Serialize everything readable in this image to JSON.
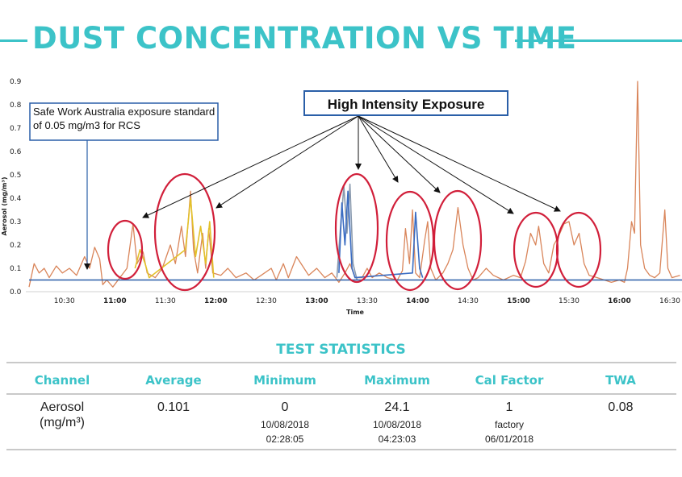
{
  "title": "DUST CONCENTRATION VS TIME",
  "colors": {
    "accent": "#3cc3c8",
    "ellipse": "#d11f3a",
    "series_orange": "#d9855a",
    "series_blue": "#3a6cc2",
    "series_yellow": "#e3c12a",
    "series_gray": "#8a9aae",
    "threshold": "#2a5fa8",
    "callout_border": "#2a5fa8"
  },
  "chart_data": {
    "type": "line",
    "title": "",
    "xlabel": "Time",
    "ylabel": "Aerosol (mg/m³)",
    "ylim": [
      0,
      0.9
    ],
    "yticks": [
      "0.9",
      "0.8",
      "0.7",
      "0.6",
      "0.5",
      "0.4",
      "0.3",
      "0.2",
      "0.1",
      "0.0"
    ],
    "xticks": [
      {
        "label": "10:30",
        "major": false
      },
      {
        "label": "11:00",
        "major": true
      },
      {
        "label": "11:30",
        "major": false
      },
      {
        "label": "12:00",
        "major": true
      },
      {
        "label": "12:30",
        "major": false
      },
      {
        "label": "13:00",
        "major": true
      },
      {
        "label": "13:30",
        "major": false
      },
      {
        "label": "14:00",
        "major": true
      },
      {
        "label": "14:30",
        "major": false
      },
      {
        "label": "15:00",
        "major": true
      },
      {
        "label": "15:30",
        "major": false
      },
      {
        "label": "16:00",
        "major": true
      },
      {
        "label": "16:30",
        "major": false
      }
    ],
    "threshold": 0.05,
    "series": [
      {
        "color_key": "series_orange",
        "points": [
          [
            10.15,
            0.02
          ],
          [
            10.2,
            0.12
          ],
          [
            10.25,
            0.08
          ],
          [
            10.3,
            0.1
          ],
          [
            10.35,
            0.06
          ],
          [
            10.42,
            0.11
          ],
          [
            10.48,
            0.08
          ],
          [
            10.55,
            0.1
          ],
          [
            10.62,
            0.07
          ],
          [
            10.7,
            0.15
          ],
          [
            10.75,
            0.1
          ],
          [
            10.8,
            0.19
          ],
          [
            10.85,
            0.14
          ],
          [
            10.88,
            0.03
          ],
          [
            10.92,
            0.05
          ],
          [
            10.98,
            0.02
          ],
          [
            11.05,
            0.06
          ],
          [
            11.12,
            0.1
          ],
          [
            11.18,
            0.29
          ],
          [
            11.22,
            0.12
          ],
          [
            11.28,
            0.17
          ],
          [
            11.32,
            0.08
          ],
          [
            11.4,
            0.06
          ],
          [
            11.47,
            0.1
          ],
          [
            11.55,
            0.2
          ],
          [
            11.6,
            0.12
          ],
          [
            11.66,
            0.28
          ],
          [
            11.7,
            0.15
          ],
          [
            11.75,
            0.43
          ],
          [
            11.78,
            0.18
          ],
          [
            11.82,
            0.08
          ],
          [
            11.87,
            0.25
          ],
          [
            11.9,
            0.1
          ],
          [
            11.93,
            0.27
          ],
          [
            11.97,
            0.08
          ],
          [
            12.05,
            0.07
          ],
          [
            12.12,
            0.1
          ],
          [
            12.2,
            0.06
          ],
          [
            12.3,
            0.08
          ],
          [
            12.38,
            0.05
          ],
          [
            12.45,
            0.07
          ],
          [
            12.55,
            0.1
          ],
          [
            12.6,
            0.05
          ],
          [
            12.67,
            0.12
          ],
          [
            12.72,
            0.06
          ],
          [
            12.8,
            0.15
          ],
          [
            12.86,
            0.11
          ],
          [
            12.92,
            0.07
          ],
          [
            13.0,
            0.1
          ],
          [
            13.08,
            0.06
          ],
          [
            13.15,
            0.08
          ],
          [
            13.22,
            0.04
          ],
          [
            13.28,
            0.08
          ],
          [
            13.33,
            0.12
          ],
          [
            13.38,
            0.06
          ],
          [
            13.45,
            0.06
          ],
          [
            13.5,
            0.1
          ],
          [
            13.55,
            0.06
          ],
          [
            13.62,
            0.08
          ],
          [
            13.7,
            0.06
          ],
          [
            13.8,
            0.05
          ],
          [
            13.85,
            0.09
          ],
          [
            13.88,
            0.27
          ],
          [
            13.92,
            0.12
          ],
          [
            13.95,
            0.35
          ],
          [
            13.98,
            0.08
          ],
          [
            14.02,
            0.06
          ],
          [
            14.07,
            0.22
          ],
          [
            14.1,
            0.3
          ],
          [
            14.13,
            0.1
          ],
          [
            14.18,
            0.05
          ],
          [
            14.25,
            0.08
          ],
          [
            14.3,
            0.12
          ],
          [
            14.35,
            0.18
          ],
          [
            14.4,
            0.36
          ],
          [
            14.45,
            0.2
          ],
          [
            14.5,
            0.1
          ],
          [
            14.55,
            0.05
          ],
          [
            14.6,
            0.06
          ],
          [
            14.68,
            0.1
          ],
          [
            14.75,
            0.07
          ],
          [
            14.85,
            0.05
          ],
          [
            14.95,
            0.07
          ],
          [
            15.02,
            0.06
          ],
          [
            15.07,
            0.13
          ],
          [
            15.12,
            0.25
          ],
          [
            15.17,
            0.2
          ],
          [
            15.2,
            0.28
          ],
          [
            15.25,
            0.12
          ],
          [
            15.3,
            0.08
          ],
          [
            15.35,
            0.2
          ],
          [
            15.4,
            0.24
          ],
          [
            15.45,
            0.29
          ],
          [
            15.5,
            0.3
          ],
          [
            15.55,
            0.2
          ],
          [
            15.6,
            0.25
          ],
          [
            15.65,
            0.12
          ],
          [
            15.7,
            0.07
          ],
          [
            15.78,
            0.06
          ],
          [
            15.85,
            0.05
          ],
          [
            15.92,
            0.04
          ],
          [
            16.0,
            0.05
          ],
          [
            16.05,
            0.04
          ],
          [
            16.08,
            0.1
          ],
          [
            16.12,
            0.3
          ],
          [
            16.15,
            0.25
          ],
          [
            16.18,
            0.9
          ],
          [
            16.21,
            0.2
          ],
          [
            16.25,
            0.1
          ],
          [
            16.3,
            0.07
          ],
          [
            16.35,
            0.06
          ],
          [
            16.4,
            0.08
          ],
          [
            16.45,
            0.35
          ],
          [
            16.48,
            0.1
          ],
          [
            16.52,
            0.06
          ],
          [
            16.6,
            0.07
          ]
        ]
      },
      {
        "color_key": "series_yellow",
        "points": [
          [
            11.2,
            0.1
          ],
          [
            11.25,
            0.18
          ],
          [
            11.3,
            0.12
          ],
          [
            11.34,
            0.06
          ],
          [
            11.7,
            0.18
          ],
          [
            11.75,
            0.4
          ],
          [
            11.8,
            0.15
          ],
          [
            11.85,
            0.28
          ],
          [
            11.9,
            0.12
          ],
          [
            11.94,
            0.3
          ],
          [
            11.98,
            0.06
          ]
        ]
      },
      {
        "color_key": "series_gray",
        "points": [
          [
            13.2,
            0.06
          ],
          [
            13.24,
            0.3
          ],
          [
            13.27,
            0.45
          ],
          [
            13.3,
            0.25
          ],
          [
            13.33,
            0.46
          ],
          [
            13.36,
            0.12
          ],
          [
            13.4,
            0.05
          ]
        ]
      },
      {
        "color_key": "series_blue",
        "points": [
          [
            13.22,
            0.08
          ],
          [
            13.25,
            0.38
          ],
          [
            13.28,
            0.2
          ],
          [
            13.31,
            0.43
          ],
          [
            13.35,
            0.1
          ],
          [
            13.38,
            0.06
          ],
          [
            13.95,
            0.08
          ],
          [
            13.98,
            0.34
          ],
          [
            14.02,
            0.1
          ],
          [
            14.05,
            0.06
          ]
        ]
      }
    ]
  },
  "annotations": {
    "threshold_callout": "Safe Work Australia exposure standard of 0.05 mg/m3 for RCS",
    "exposure_label": "High Intensity Exposure"
  },
  "stats": {
    "title": "TEST STATISTICS",
    "headers": [
      "Channel",
      "Average",
      "Minimum",
      "Maximum",
      "Cal Factor",
      "TWA"
    ],
    "row": {
      "channel": "Aerosol",
      "channel_unit": "(mg/m³)",
      "average": "0.101",
      "minimum": "0",
      "minimum_date": "10/08/2018",
      "minimum_time": "02:28:05",
      "maximum": "24.1",
      "maximum_date": "10/08/2018",
      "maximum_time": "04:23:03",
      "cal_factor": "1",
      "cal_factor_source": "factory",
      "cal_factor_date": "06/01/2018",
      "twa": "0.08"
    }
  }
}
